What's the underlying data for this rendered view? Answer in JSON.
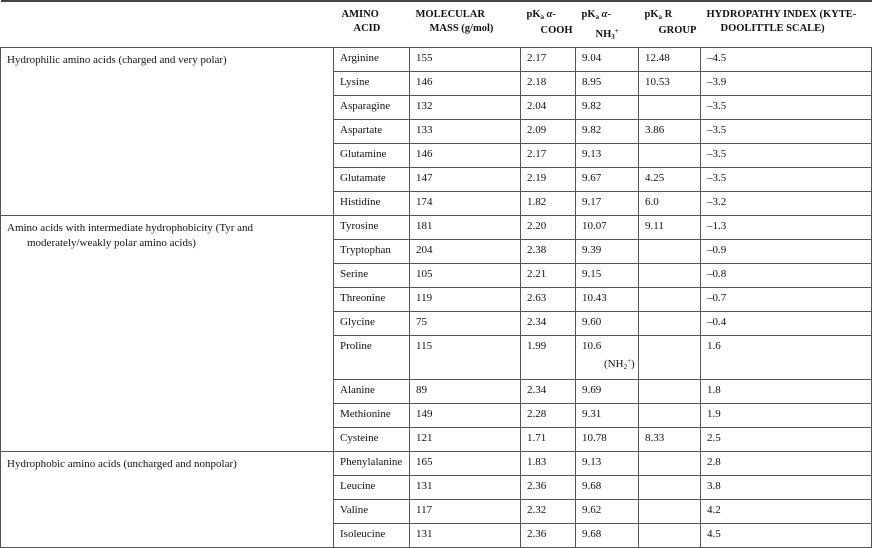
{
  "header": {
    "group": "",
    "amino_acid": [
      "AMINO",
      "ACID"
    ],
    "mass": [
      "MOLECULAR",
      "MASS (g/mol)"
    ],
    "pka_cooh": [
      "pK",
      "a",
      " α-",
      "COOH"
    ],
    "pka_nh3": [
      "pK",
      "a",
      " α-",
      "NH",
      "3",
      "+"
    ],
    "pka_r": [
      "pK",
      "a",
      " R",
      "GROUP"
    ],
    "hydropathy": [
      "HYDROPATHY INDEX (KYTE-",
      "DOOLITTLE SCALE)"
    ]
  },
  "groups": [
    {
      "label": [
        "Hydrophilic amino acids (charged and very polar)",
        ""
      ],
      "rows": [
        {
          "name": "Arginine",
          "mass": "155",
          "cooh": "2.17",
          "nh3": "9.04",
          "r": "12.48",
          "hi": "–4.5"
        },
        {
          "name": "Lysine",
          "mass": "146",
          "cooh": "2.18",
          "nh3": "8.95",
          "r": "10.53",
          "hi": "–3.9"
        },
        {
          "name": "Asparagine",
          "mass": "132",
          "cooh": "2.04",
          "nh3": "9.82",
          "r": "",
          "hi": "–3.5"
        },
        {
          "name": "Aspartate",
          "mass": "133",
          "cooh": "2.09",
          "nh3": "9.82",
          "r": "3.86",
          "hi": "–3.5"
        },
        {
          "name": "Glutamine",
          "mass": "146",
          "cooh": "2.17",
          "nh3": "9.13",
          "r": "",
          "hi": "–3.5"
        },
        {
          "name": "Glutamate",
          "mass": "147",
          "cooh": "2.19",
          "nh3": "9.67",
          "r": "4.25",
          "hi": "–3.5"
        },
        {
          "name": "Histidine",
          "mass": "174",
          "cooh": "1.82",
          "nh3": "9.17",
          "r": "6.0",
          "hi": "–3.2"
        }
      ]
    },
    {
      "label": [
        "Amino acids with intermediate hydrophobicity (Tyr and",
        "moderately/weakly polar amino acids)"
      ],
      "rows": [
        {
          "name": "Tyrosine",
          "mass": "181",
          "cooh": "2.20",
          "nh3": "10.07",
          "r": "9.11",
          "hi": "–1.3"
        },
        {
          "name": "Tryptophan",
          "mass": "204",
          "cooh": "2.38",
          "nh3": "9.39",
          "r": "",
          "hi": "–0.9"
        },
        {
          "name": "Serine",
          "mass": "105",
          "cooh": "2.21",
          "nh3": "9.15",
          "r": "",
          "hi": "–0.8"
        },
        {
          "name": "Threonine",
          "mass": "119",
          "cooh": "2.63",
          "nh3": "10.43",
          "r": "",
          "hi": "–0.7"
        },
        {
          "name": "Glycine",
          "mass": "75",
          "cooh": "2.34",
          "nh3": "9.60",
          "r": "",
          "hi": "–0.4"
        },
        {
          "name": "Proline",
          "mass": "115",
          "cooh": "1.99",
          "nh3": "10.6",
          "nh3_note": [
            "(NH",
            "2",
            "+",
            ")"
          ],
          "r": "",
          "hi": "1.6"
        },
        {
          "name": "Alanine",
          "mass": "89",
          "cooh": "2.34",
          "nh3": "9.69",
          "r": "",
          "hi": "1.8"
        },
        {
          "name": "Methionine",
          "mass": "149",
          "cooh": "2.28",
          "nh3": "9.31",
          "r": "",
          "hi": "1.9"
        },
        {
          "name": "Cysteine",
          "mass": "121",
          "cooh": "1.71",
          "nh3": "10.78",
          "r": "8.33",
          "hi": "2.5"
        }
      ]
    },
    {
      "label": [
        "Hydrophobic amino acids (uncharged and nonpolar)",
        ""
      ],
      "rows": [
        {
          "name": "Phenylalanine",
          "mass": "165",
          "cooh": "1.83",
          "nh3": "9.13",
          "r": "",
          "hi": "2.8"
        },
        {
          "name": "Leucine",
          "mass": "131",
          "cooh": "2.36",
          "nh3": "9.68",
          "r": "",
          "hi": "3.8"
        },
        {
          "name": "Valine",
          "mass": "117",
          "cooh": "2.32",
          "nh3": "9.62",
          "r": "",
          "hi": "4.2"
        },
        {
          "name": "Isoleucine",
          "mass": "131",
          "cooh": "2.36",
          "nh3": "9.68",
          "r": "",
          "hi": "4.5"
        }
      ]
    }
  ]
}
